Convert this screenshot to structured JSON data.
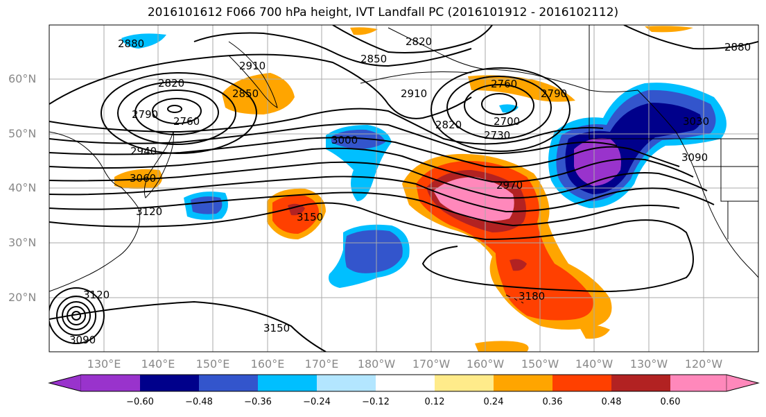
{
  "title": "2016101612 F066 700 hPa height, IVT Landfall PC (2016101912 - 2016102112)",
  "lat_labels": [
    "60°N",
    "50°N",
    "40°N",
    "30°N",
    "20°N"
  ],
  "lon_labels": [
    "130°E",
    "140°E",
    "150°E",
    "160°E",
    "170°E",
    "180°W",
    "170°W",
    "160°W",
    "150°W",
    "140°W",
    "130°W",
    "120°W"
  ],
  "contour_labels": [
    "2880",
    "2820",
    "2850",
    "2910",
    "2820",
    "2850",
    "2880",
    "2760",
    "2790",
    "2910",
    "2790",
    "2700",
    "2730",
    "2820",
    "2760",
    "2940",
    "3000",
    "3030",
    "3060",
    "3090",
    "2970",
    "3150",
    "3120",
    "3180",
    "3120",
    "3150",
    "3090"
  ],
  "colorbar": {
    "colors": [
      "#9933cc",
      "#00008b",
      "#3355cc",
      "#00bfff",
      "#b3e6ff",
      "#ffffff",
      "#ffeb8a",
      "#ffa500",
      "#ff4000",
      "#b22222",
      "#ff88bb"
    ],
    "tick_labels": [
      "−0.60",
      "−0.48",
      "−0.36",
      "−0.24",
      "−0.12",
      "0.12",
      "0.24",
      "0.36",
      "0.48",
      "0.60"
    ]
  },
  "colors": {
    "coastline": "#000000",
    "grid": "#aaaaaa",
    "contour": "#000000",
    "axis_label": "#888888"
  }
}
